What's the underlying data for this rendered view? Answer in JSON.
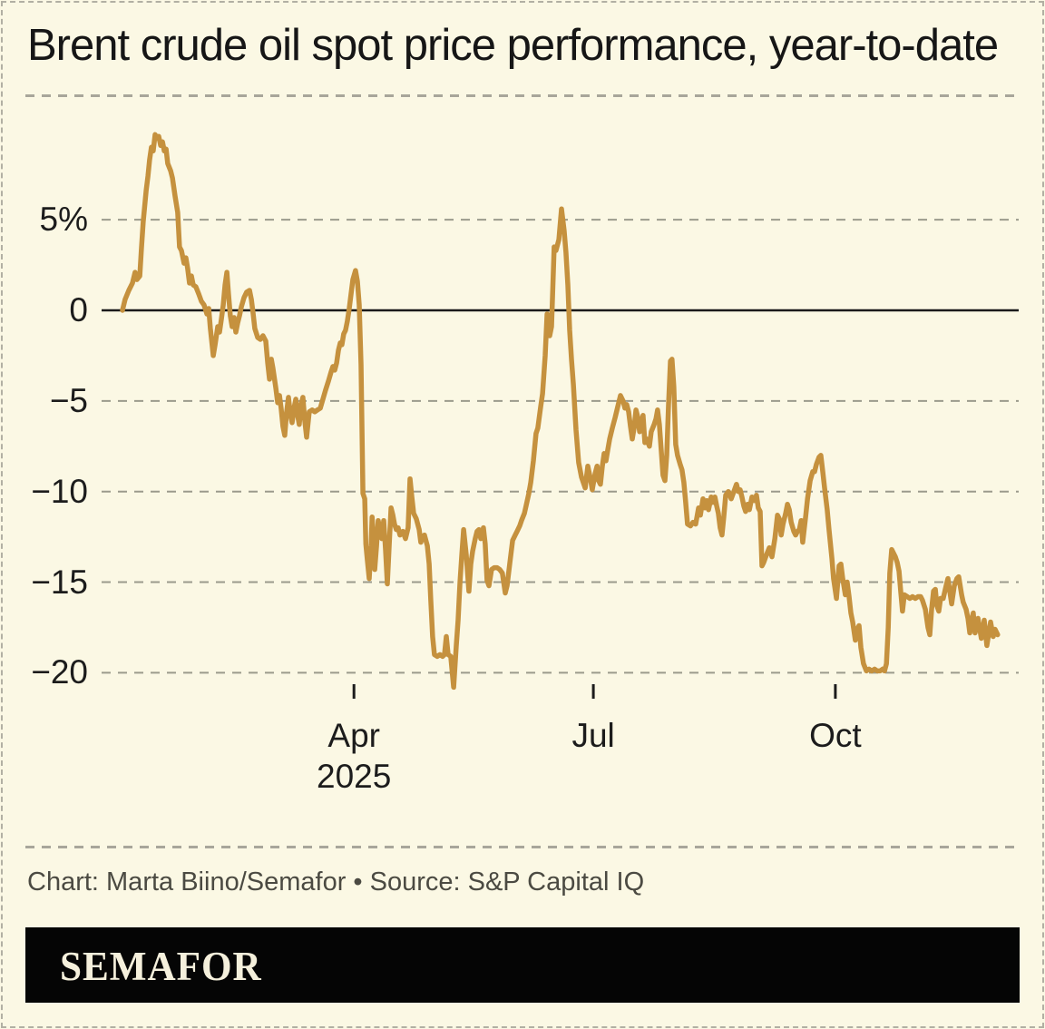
{
  "title": "Brent crude oil spot price performance, year-to-date",
  "footer": {
    "credit": "Chart: Marta Biino/Semafor • Source: S&P Capital IQ"
  },
  "logo": {
    "text": "SEMAFOR"
  },
  "colors": {
    "background": "#fbf8e4",
    "line": "#c5913e",
    "grid": "#9b9a8c",
    "zero_line": "#1a1a1a",
    "axis_text": "#1c1c1c",
    "footer_text": "#4b4a42",
    "logo_bg": "#050505",
    "logo_text": "#f5f0dc",
    "dashed_border": "#b2b0a3"
  },
  "chart_data": {
    "type": "line",
    "title": "Brent crude oil spot price performance, year-to-date",
    "series_name": "Brent crude oil spot price, % change year-to-date, 2025",
    "x_unit": "day_of_year_2025",
    "y_unit": "percent",
    "ylim": [
      -22,
      10.5
    ],
    "xlim_days": [
      1,
      338
    ],
    "grid": "horizontal dashed gridlines; solid black zero line",
    "legend": "none",
    "y_ticks": [
      {
        "value": 5,
        "label": "5%"
      },
      {
        "value": 0,
        "label": "0"
      },
      {
        "value": -5,
        "label": "−5"
      },
      {
        "value": -10,
        "label": "−10"
      },
      {
        "value": -15,
        "label": "−15"
      },
      {
        "value": -20,
        "label": "−20"
      }
    ],
    "x_ticks": [
      {
        "day": 91,
        "label": "Apr",
        "sublabel": "2025"
      },
      {
        "day": 182,
        "label": "Jul",
        "sublabel": ""
      },
      {
        "day": 274,
        "label": "Oct",
        "sublabel": ""
      }
    ],
    "points": [
      [
        3,
        0
      ],
      [
        4,
        0.6
      ],
      [
        5.4,
        1.1
      ],
      [
        6.8,
        1.5
      ],
      [
        7.8,
        2.1
      ],
      [
        8.5,
        1.7
      ],
      [
        9.6,
        1.9
      ],
      [
        10.2,
        3.4
      ],
      [
        10.9,
        4.9
      ],
      [
        12,
        6.6
      ],
      [
        12.7,
        7.4
      ],
      [
        13.3,
        8.3
      ],
      [
        14,
        9
      ],
      [
        14.7,
        8.8
      ],
      [
        15.4,
        9.7
      ],
      [
        16.1,
        9.5
      ],
      [
        16.8,
        9.6
      ],
      [
        17.5,
        9.1
      ],
      [
        18.2,
        9.3
      ],
      [
        18.9,
        8.8
      ],
      [
        19.6,
        8.9
      ],
      [
        20.2,
        8.1
      ],
      [
        21.3,
        7.7
      ],
      [
        22,
        7.3
      ],
      [
        23,
        6.3
      ],
      [
        24,
        5.4
      ],
      [
        24.7,
        3.5
      ],
      [
        25.4,
        3.3
      ],
      [
        26.4,
        2.6
      ],
      [
        27.1,
        2.9
      ],
      [
        27.8,
        2.3
      ],
      [
        28.5,
        1.5
      ],
      [
        29.2,
        1.9
      ],
      [
        29.9,
        1.4
      ],
      [
        30.9,
        1.3
      ],
      [
        32,
        0.9
      ],
      [
        33,
        0.5
      ],
      [
        34,
        0.3
      ],
      [
        35.1,
        -0.2
      ],
      [
        35.8,
        0.1
      ],
      [
        36.4,
        -1
      ],
      [
        37.5,
        -2.5
      ],
      [
        38.2,
        -1.9
      ],
      [
        39.2,
        -0.9
      ],
      [
        39.9,
        -1.2
      ],
      [
        40.6,
        -0.5
      ],
      [
        41.3,
        0.3
      ],
      [
        42,
        1.4
      ],
      [
        42.7,
        2.1
      ],
      [
        43.3,
        0.9
      ],
      [
        44,
        -0.3
      ],
      [
        44.7,
        -0.9
      ],
      [
        45.4,
        -0.4
      ],
      [
        46.1,
        -1.2
      ],
      [
        46.8,
        -0.7
      ],
      [
        47.5,
        -0.3
      ],
      [
        48.2,
        0.2
      ],
      [
        49.2,
        0.7
      ],
      [
        50.2,
        1
      ],
      [
        51.3,
        1.1
      ],
      [
        52,
        0.6
      ],
      [
        52.7,
        -0.2
      ],
      [
        53.3,
        -1
      ],
      [
        54.4,
        -1.5
      ],
      [
        55.4,
        -1.6
      ],
      [
        56.4,
        -1.4
      ],
      [
        57.5,
        -1.7
      ],
      [
        58.2,
        -2.9
      ],
      [
        58.9,
        -3.8
      ],
      [
        59.6,
        -2.7
      ],
      [
        60.2,
        -3.2
      ],
      [
        61.3,
        -4.3
      ],
      [
        62,
        -5.1
      ],
      [
        62.7,
        -4.7
      ],
      [
        63.3,
        -5.4
      ],
      [
        64,
        -6.4
      ],
      [
        64.7,
        -6.9
      ],
      [
        65.4,
        -5.6
      ],
      [
        66.1,
        -4.8
      ],
      [
        66.8,
        -5.7
      ],
      [
        67.5,
        -6.2
      ],
      [
        68.2,
        -5.4
      ],
      [
        68.9,
        -4.9
      ],
      [
        69.6,
        -5.8
      ],
      [
        70.2,
        -6.3
      ],
      [
        70.9,
        -5.2
      ],
      [
        71.6,
        -4.8
      ],
      [
        72.3,
        -6.1
      ],
      [
        73,
        -7
      ],
      [
        74,
        -5.6
      ],
      [
        75.1,
        -5.5
      ],
      [
        76.1,
        -5.6
      ],
      [
        77.1,
        -5.5
      ],
      [
        78.2,
        -5.4
      ],
      [
        79.2,
        -4.9
      ],
      [
        80.2,
        -4.4
      ],
      [
        81.3,
        -3.9
      ],
      [
        82.3,
        -3.4
      ],
      [
        83,
        -3.1
      ],
      [
        83.7,
        -3.3
      ],
      [
        84.4,
        -2.9
      ],
      [
        85.1,
        -2.2
      ],
      [
        85.8,
        -1.8
      ],
      [
        86.4,
        -1.9
      ],
      [
        87.1,
        -1.3
      ],
      [
        87.8,
        -1.1
      ],
      [
        88.5,
        -0.6
      ],
      [
        89.2,
        0.1
      ],
      [
        89.9,
        0.9
      ],
      [
        90.6,
        1.7
      ],
      [
        91.6,
        2.2
      ],
      [
        92.3,
        1.6
      ],
      [
        93,
        0.3
      ],
      [
        93.7,
        -3
      ],
      [
        94.4,
        -10.1
      ],
      [
        95.1,
        -10.4
      ],
      [
        95.5,
        -12.9
      ],
      [
        96.1,
        -13.8
      ],
      [
        96.8,
        -14.8
      ],
      [
        97.5,
        -13
      ],
      [
        97.9,
        -11.4
      ],
      [
        98.5,
        -12.8
      ],
      [
        98.9,
        -14.3
      ],
      [
        99.6,
        -13
      ],
      [
        100.2,
        -11.6
      ],
      [
        100.9,
        -12.1
      ],
      [
        101.6,
        -12.6
      ],
      [
        102.3,
        -11.6
      ],
      [
        103,
        -13.2
      ],
      [
        103.7,
        -15.1
      ],
      [
        104.4,
        -12.9
      ],
      [
        105.1,
        -10.9
      ],
      [
        105.8,
        -11.3
      ],
      [
        106.4,
        -11.8
      ],
      [
        107.1,
        -12.1
      ],
      [
        107.8,
        -12
      ],
      [
        108.5,
        -12.4
      ],
      [
        109.6,
        -12.2
      ],
      [
        110.6,
        -12.6
      ],
      [
        111.6,
        -12
      ],
      [
        112.3,
        -9.3
      ],
      [
        113,
        -10.3
      ],
      [
        113.7,
        -11.2
      ],
      [
        114.7,
        -11.5
      ],
      [
        115.8,
        -12.1
      ],
      [
        116.4,
        -12.8
      ],
      [
        117.1,
        -12.5
      ],
      [
        117.8,
        -12.4
      ],
      [
        118.9,
        -13
      ],
      [
        119.6,
        -14
      ],
      [
        120.2,
        -16
      ],
      [
        120.9,
        -18
      ],
      [
        121.6,
        -19
      ],
      [
        122.7,
        -19.1
      ],
      [
        123.7,
        -19
      ],
      [
        124.7,
        -19.1
      ],
      [
        125.4,
        -19
      ],
      [
        126.1,
        -18
      ],
      [
        126.8,
        -19
      ],
      [
        127.8,
        -19.1
      ],
      [
        128.9,
        -20.8
      ],
      [
        129.9,
        -18.5
      ],
      [
        130.6,
        -17.1
      ],
      [
        131.3,
        -15
      ],
      [
        132,
        -13.5
      ],
      [
        132.7,
        -12.1
      ],
      [
        133.7,
        -13.5
      ],
      [
        134.7,
        -15.5
      ],
      [
        135.4,
        -14
      ],
      [
        136.1,
        -13.3
      ],
      [
        137.1,
        -12.6
      ],
      [
        137.8,
        -12.2
      ],
      [
        138.5,
        -12.1
      ],
      [
        139.2,
        -12.6
      ],
      [
        140.2,
        -12
      ],
      [
        140.9,
        -12.9
      ],
      [
        141.6,
        -14.9
      ],
      [
        142.3,
        -15.2
      ],
      [
        143.3,
        -14.3
      ],
      [
        144.3,
        -14.2
      ],
      [
        145.4,
        -14.2
      ],
      [
        146.4,
        -14.3
      ],
      [
        147.4,
        -14.5
      ],
      [
        148.5,
        -15.6
      ],
      [
        149.2,
        -15.2
      ],
      [
        150.2,
        -14
      ],
      [
        151.3,
        -12.7
      ],
      [
        152.3,
        -12.4
      ],
      [
        153,
        -12.2
      ],
      [
        154,
        -11.9
      ],
      [
        154.7,
        -11.6
      ],
      [
        155.8,
        -11.2
      ],
      [
        156.4,
        -10.8
      ],
      [
        157.5,
        -10.1
      ],
      [
        158.2,
        -9.5
      ],
      [
        159.2,
        -8.3
      ],
      [
        160.2,
        -6.8
      ],
      [
        160.9,
        -6.5
      ],
      [
        162,
        -5.3
      ],
      [
        162.7,
        -4.6
      ],
      [
        163.7,
        -2.5
      ],
      [
        164.4,
        -0.2
      ],
      [
        165.4,
        -1.4
      ],
      [
        166.1,
        -0.9
      ],
      [
        167.1,
        3.5
      ],
      [
        167.8,
        3.3
      ],
      [
        168.9,
        3.9
      ],
      [
        169.9,
        5.6
      ],
      [
        170.9,
        4.4
      ],
      [
        171.6,
        3.2
      ],
      [
        172.3,
        1.4
      ],
      [
        173,
        -1.1
      ],
      [
        173.7,
        -2.7
      ],
      [
        174.4,
        -4.1
      ],
      [
        175.4,
        -6.6
      ],
      [
        176.4,
        -8.4
      ],
      [
        177.5,
        -9.2
      ],
      [
        178.9,
        -9.8
      ],
      [
        179.9,
        -8.6
      ],
      [
        180.9,
        -9.3
      ],
      [
        181.6,
        -9.9
      ],
      [
        182.7,
        -9
      ],
      [
        183.4,
        -8.6
      ],
      [
        184,
        -9.4
      ],
      [
        184.7,
        -9.6
      ],
      [
        185.4,
        -8.6
      ],
      [
        186.1,
        -7.9
      ],
      [
        186.8,
        -8.3
      ],
      [
        187.5,
        -7.7
      ],
      [
        188.2,
        -7.1
      ],
      [
        189.2,
        -6.5
      ],
      [
        190.3,
        -5.9
      ],
      [
        191.3,
        -5.3
      ],
      [
        192.3,
        -4.7
      ],
      [
        193.3,
        -5
      ],
      [
        194,
        -5.4
      ],
      [
        194.7,
        -5.2
      ],
      [
        195.4,
        -5.6
      ],
      [
        196.1,
        -6.4
      ],
      [
        196.8,
        -7.1
      ],
      [
        197.5,
        -6.5
      ],
      [
        198.2,
        -5.5
      ],
      [
        198.9,
        -5.9
      ],
      [
        199.6,
        -6.7
      ],
      [
        200.2,
        -6.3
      ],
      [
        200.9,
        -5.8
      ],
      [
        201.6,
        -7.3
      ],
      [
        202.3,
        -7.1
      ],
      [
        203.3,
        -7.5
      ],
      [
        204,
        -6.7
      ],
      [
        205.1,
        -6.3
      ],
      [
        205.8,
        -6
      ],
      [
        206.4,
        -5.5
      ],
      [
        207.1,
        -6.3
      ],
      [
        207.8,
        -7.7
      ],
      [
        208.5,
        -9.1
      ],
      [
        209.2,
        -9.4
      ],
      [
        209.9,
        -8
      ],
      [
        210.6,
        -5.2
      ],
      [
        211.3,
        -2.8
      ],
      [
        211.9,
        -2.7
      ],
      [
        212.6,
        -4.2
      ],
      [
        213.3,
        -7.4
      ],
      [
        214,
        -8
      ],
      [
        215,
        -8.5
      ],
      [
        215.7,
        -8.8
      ],
      [
        216.4,
        -9.5
      ],
      [
        217.1,
        -10.6
      ],
      [
        217.8,
        -11.8
      ],
      [
        218.9,
        -11.9
      ],
      [
        219.9,
        -11.7
      ],
      [
        220.9,
        -11.8
      ],
      [
        222,
        -10.9
      ],
      [
        222.7,
        -11.3
      ],
      [
        223.7,
        -10.4
      ],
      [
        224.4,
        -10.9
      ],
      [
        225.1,
        -10.5
      ],
      [
        225.8,
        -11
      ],
      [
        226.8,
        -10.3
      ],
      [
        227.5,
        -10.6
      ],
      [
        228.2,
        -10.3
      ],
      [
        228.9,
        -10.8
      ],
      [
        229.5,
        -11.2
      ],
      [
        230.2,
        -12
      ],
      [
        230.9,
        -12.4
      ],
      [
        231.6,
        -11.4
      ],
      [
        232.3,
        -10.2
      ],
      [
        233.3,
        -10
      ],
      [
        234.4,
        -10.4
      ],
      [
        235.4,
        -10
      ],
      [
        236.4,
        -9.6
      ],
      [
        237.1,
        -10
      ],
      [
        237.8,
        -9.9
      ],
      [
        238.5,
        -10.3
      ],
      [
        239.2,
        -10.8
      ],
      [
        239.9,
        -11.1
      ],
      [
        240.6,
        -10.7
      ],
      [
        241.3,
        -11
      ],
      [
        242.3,
        -10.3
      ],
      [
        243.3,
        -10.5
      ],
      [
        244,
        -10.2
      ],
      [
        244.7,
        -10.9
      ],
      [
        245.4,
        -11.1
      ],
      [
        246.1,
        -14.1
      ],
      [
        246.8,
        -13.9
      ],
      [
        247.8,
        -13.5
      ],
      [
        248.9,
        -13.1
      ],
      [
        249.9,
        -13.6
      ],
      [
        251,
        -12.6
      ],
      [
        252,
        -11.3
      ],
      [
        252.7,
        -11.5
      ],
      [
        253.4,
        -12.4
      ],
      [
        254.1,
        -11.8
      ],
      [
        255.1,
        -11.2
      ],
      [
        255.8,
        -10.7
      ],
      [
        256.5,
        -11
      ],
      [
        257.2,
        -11.7
      ],
      [
        258.2,
        -12.2
      ],
      [
        258.9,
        -12.4
      ],
      [
        259.6,
        -12.2
      ],
      [
        260.3,
        -12.1
      ],
      [
        261,
        -11.6
      ],
      [
        261.6,
        -12.8
      ],
      [
        262.7,
        -11.4
      ],
      [
        263.4,
        -10.4
      ],
      [
        264.4,
        -9.4
      ],
      [
        265.4,
        -8.9
      ],
      [
        266.1,
        -8.9
      ],
      [
        266.8,
        -8.5
      ],
      [
        267.8,
        -8.1
      ],
      [
        268.5,
        -8
      ],
      [
        269.2,
        -8.9
      ],
      [
        269.9,
        -9.8
      ],
      [
        270.9,
        -11
      ],
      [
        271.6,
        -12.1
      ],
      [
        272.7,
        -13.7
      ],
      [
        273.3,
        -14.8
      ],
      [
        274.4,
        -15.9
      ],
      [
        275.4,
        -14.1
      ],
      [
        276.1,
        -14
      ],
      [
        276.8,
        -14.8
      ],
      [
        277.8,
        -15.7
      ],
      [
        278.5,
        -15
      ],
      [
        279.2,
        -15.8
      ],
      [
        279.9,
        -16.7
      ],
      [
        280.6,
        -17.2
      ],
      [
        281.6,
        -18.2
      ],
      [
        282.3,
        -17.6
      ],
      [
        283,
        -17.4
      ],
      [
        283.7,
        -18.6
      ],
      [
        284.7,
        -19.5
      ],
      [
        285.8,
        -19.9
      ],
      [
        286.8,
        -19.8
      ],
      [
        287.8,
        -19.9
      ],
      [
        288.9,
        -19.8
      ],
      [
        289.9,
        -19.9
      ],
      [
        291,
        -19.9
      ],
      [
        292,
        -19.8
      ],
      [
        292.7,
        -19.9
      ],
      [
        293.4,
        -19.5
      ],
      [
        294.1,
        -17.5
      ],
      [
        294.7,
        -14.5
      ],
      [
        295.4,
        -13.2
      ],
      [
        296.1,
        -13.4
      ],
      [
        296.8,
        -13.6
      ],
      [
        297.5,
        -13.9
      ],
      [
        298.2,
        -14.4
      ],
      [
        298.9,
        -15.6
      ],
      [
        299.5,
        -16.6
      ],
      [
        300.2,
        -15.7
      ],
      [
        301.3,
        -15.8
      ],
      [
        302.3,
        -15.9
      ],
      [
        303.3,
        -15.8
      ],
      [
        304.4,
        -15.9
      ],
      [
        305.4,
        -15.8
      ],
      [
        306.4,
        -15.8
      ],
      [
        307.1,
        -16
      ],
      [
        308.2,
        -16.5
      ],
      [
        309.2,
        -17.5
      ],
      [
        309.9,
        -17.9
      ],
      [
        310.6,
        -16.5
      ],
      [
        311.3,
        -15.5
      ],
      [
        312,
        -15.4
      ],
      [
        312.6,
        -16.3
      ],
      [
        313.3,
        -16.6
      ],
      [
        314,
        -15.9
      ],
      [
        315,
        -15.9
      ],
      [
        316.1,
        -15.2
      ],
      [
        316.8,
        -14.8
      ],
      [
        317.5,
        -15.5
      ],
      [
        318.2,
        -16.2
      ],
      [
        319.2,
        -15.2
      ],
      [
        320.2,
        -14.8
      ],
      [
        320.9,
        -14.7
      ],
      [
        322,
        -15.7
      ],
      [
        322.6,
        -16.1
      ],
      [
        323.7,
        -16.5
      ],
      [
        324.4,
        -17
      ],
      [
        325.1,
        -17.8
      ],
      [
        325.7,
        -17.2
      ],
      [
        326.4,
        -16.7
      ],
      [
        327.1,
        -17.8
      ],
      [
        328.2,
        -17
      ],
      [
        329.5,
        -18.1
      ],
      [
        330.6,
        -17.1
      ],
      [
        331.6,
        -18.5
      ],
      [
        333,
        -17.2
      ],
      [
        334,
        -18
      ],
      [
        334.7,
        -17.6
      ],
      [
        335.7,
        -17.9
      ]
    ]
  }
}
